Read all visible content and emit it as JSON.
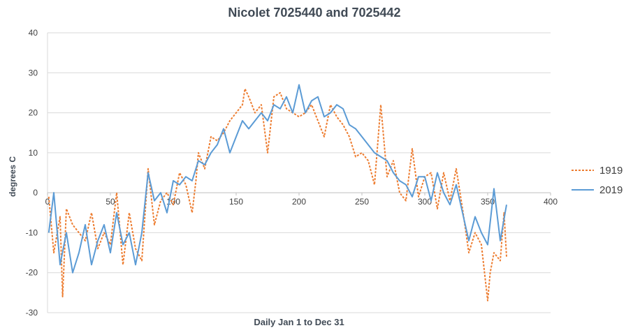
{
  "chart_data": {
    "type": "line",
    "title": "Nicolet 7025440 and 7025442",
    "xlabel": "Daily Jan 1 to Dec 31",
    "ylabel": "degrees C",
    "xlim": [
      0,
      400
    ],
    "ylim": [
      -30,
      40
    ],
    "x_ticks": [
      0,
      50,
      100,
      150,
      200,
      250,
      300,
      350,
      400
    ],
    "y_ticks": [
      -30,
      -20,
      -10,
      0,
      10,
      20,
      30,
      40
    ],
    "grid": "horizontal",
    "legend_position": "right",
    "series": [
      {
        "name": "1919",
        "color": "#ED7D31",
        "dash": "dashed",
        "x": [
          1,
          5,
          10,
          12,
          15,
          20,
          25,
          30,
          35,
          40,
          45,
          50,
          55,
          60,
          65,
          70,
          75,
          80,
          85,
          90,
          95,
          100,
          105,
          110,
          115,
          118,
          120,
          125,
          130,
          135,
          140,
          145,
          150,
          155,
          157,
          160,
          165,
          170,
          175,
          180,
          185,
          190,
          195,
          200,
          205,
          210,
          215,
          220,
          225,
          230,
          235,
          240,
          245,
          250,
          255,
          260,
          265,
          270,
          275,
          280,
          285,
          290,
          295,
          300,
          305,
          310,
          315,
          320,
          325,
          330,
          335,
          340,
          345,
          350,
          352,
          355,
          360,
          363,
          365
        ],
        "y": [
          -1,
          -15,
          -6,
          -26,
          -4,
          -8,
          -10,
          -12,
          -5,
          -14,
          -10,
          -13,
          0,
          -18,
          -5,
          -14,
          -17,
          6,
          -8,
          -2,
          0,
          -3,
          5,
          2,
          -5,
          3,
          10,
          6,
          14,
          13,
          15,
          18,
          20,
          22,
          26,
          24,
          20,
          22,
          10,
          24,
          25,
          21,
          20,
          19,
          20,
          22,
          18,
          14,
          22,
          19,
          17,
          14,
          9,
          10,
          8,
          2,
          22,
          4,
          8,
          0,
          -2,
          11,
          -1,
          4,
          5,
          -4,
          5,
          -2,
          6,
          -4,
          -15,
          -10,
          -13,
          -27,
          -20,
          -15,
          -17,
          -5,
          -16
        ]
      },
      {
        "name": "2019",
        "color": "#5B9BD5",
        "dash": "solid",
        "x": [
          1,
          5,
          10,
          15,
          20,
          25,
          30,
          35,
          40,
          45,
          50,
          55,
          60,
          65,
          70,
          75,
          80,
          85,
          90,
          95,
          100,
          105,
          110,
          115,
          120,
          125,
          130,
          135,
          140,
          145,
          150,
          155,
          160,
          165,
          170,
          175,
          180,
          185,
          190,
          195,
          200,
          205,
          210,
          215,
          220,
          225,
          230,
          235,
          240,
          245,
          250,
          255,
          260,
          265,
          270,
          275,
          280,
          285,
          290,
          295,
          300,
          305,
          310,
          315,
          320,
          325,
          330,
          335,
          340,
          345,
          350,
          355,
          360,
          365
        ],
        "y": [
          -10,
          0,
          -18,
          -10,
          -20,
          -15,
          -8,
          -18,
          -12,
          -8,
          -15,
          -5,
          -13,
          -10,
          -18,
          -10,
          5,
          -2,
          0,
          -5,
          3,
          2,
          4,
          3,
          8,
          7,
          10,
          12,
          16,
          10,
          14,
          18,
          16,
          18,
          20,
          18,
          22,
          21,
          24,
          20,
          27,
          20,
          23,
          24,
          19,
          20,
          22,
          21,
          17,
          16,
          14,
          12,
          10,
          9,
          8,
          5,
          3,
          2,
          -1,
          4,
          4,
          -2,
          5,
          0,
          -3,
          2,
          -5,
          -12,
          -6,
          -10,
          -13,
          1,
          -12,
          -3
        ]
      }
    ]
  }
}
